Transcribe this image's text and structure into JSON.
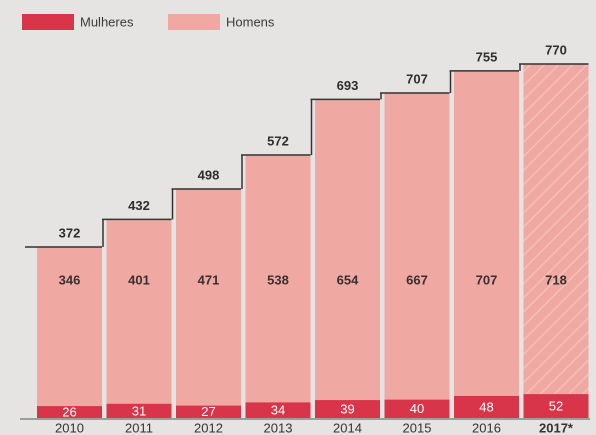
{
  "chart_data": {
    "type": "stacked-bar",
    "categories": [
      "2010",
      "2011",
      "2012",
      "2013",
      "2014",
      "2015",
      "2016",
      "2017*"
    ],
    "series": [
      {
        "name": "Mulheres",
        "color": "#d8344a",
        "values": [
          26,
          31,
          27,
          34,
          39,
          40,
          48,
          52
        ]
      },
      {
        "name": "Homens",
        "color": "#efa9a2",
        "values": [
          346,
          401,
          471,
          538,
          654,
          667,
          707,
          718
        ]
      }
    ],
    "totals": [
      372,
      432,
      498,
      572,
      693,
      707,
      755,
      770
    ]
  }
}
